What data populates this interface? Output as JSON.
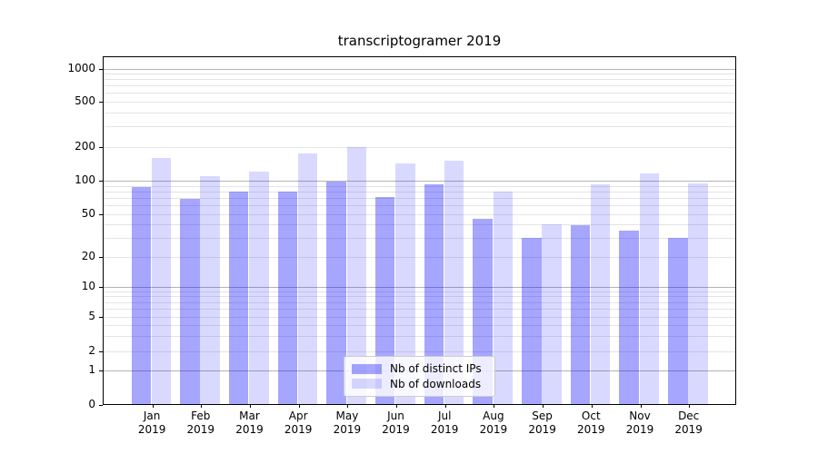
{
  "chart_data": {
    "type": "bar",
    "title": "transcriptogramer 2019",
    "categories": [
      "Jan",
      "Feb",
      "Mar",
      "Apr",
      "May",
      "Jun",
      "Jul",
      "Aug",
      "Sep",
      "Oct",
      "Nov",
      "Dec"
    ],
    "category_year": "2019",
    "series": [
      {
        "name": "Nb of distinct IPs",
        "color": "rgba(0,0,255,0.35)",
        "values": [
          86,
          67,
          78,
          78,
          96,
          70,
          91,
          44,
          29,
          38,
          34,
          29
        ]
      },
      {
        "name": "Nb of downloads",
        "color": "rgba(0,0,255,0.15)",
        "values": [
          155,
          107,
          118,
          170,
          193,
          138,
          148,
          78,
          39,
          91,
          114,
          92
        ]
      }
    ],
    "yscale": "symlog",
    "yticks": [
      0,
      1,
      2,
      5,
      10,
      20,
      50,
      100,
      200,
      500,
      1000
    ],
    "ylim": [
      0,
      1280
    ],
    "xlabel": "",
    "ylabel": "",
    "grid": "both",
    "major_grid_color": "#b4b4b4",
    "minor_grid_color": "#e4e4e9",
    "legend_position": "lower center"
  }
}
